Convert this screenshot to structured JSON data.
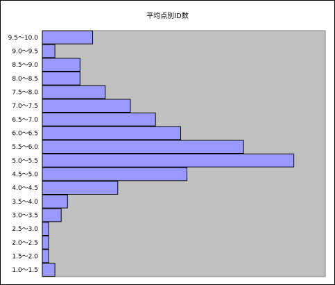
{
  "chart_data": {
    "type": "bar",
    "orientation": "horizontal",
    "title": "平均点別ID数",
    "xlabel": "",
    "ylabel": "",
    "categories": [
      "9.5～10.0",
      "9.0～9.5",
      "8.5～9.0",
      "8.0～8.5",
      "7.5～8.0",
      "7.0～7.5",
      "6.5～7.0",
      "6.0～6.5",
      "5.5～6.0",
      "5.0～5.5",
      "4.5～5.0",
      "4.0～4.5",
      "3.5～4.0",
      "3.0～3.5",
      "2.5～3.0",
      "2.0～2.5",
      "1.5～2.0",
      "1.0～1.5"
    ],
    "values": [
      40,
      10,
      30,
      30,
      50,
      70,
      90,
      110,
      160,
      200,
      115,
      60,
      20,
      15,
      5,
      5,
      5,
      10
    ],
    "xlim": [
      0,
      225
    ],
    "grid": false,
    "legend": "none",
    "colors": {
      "bar_fill": "#9999ff",
      "bar_stroke": "#000000",
      "plot_bg": "#c0c0c0"
    }
  }
}
